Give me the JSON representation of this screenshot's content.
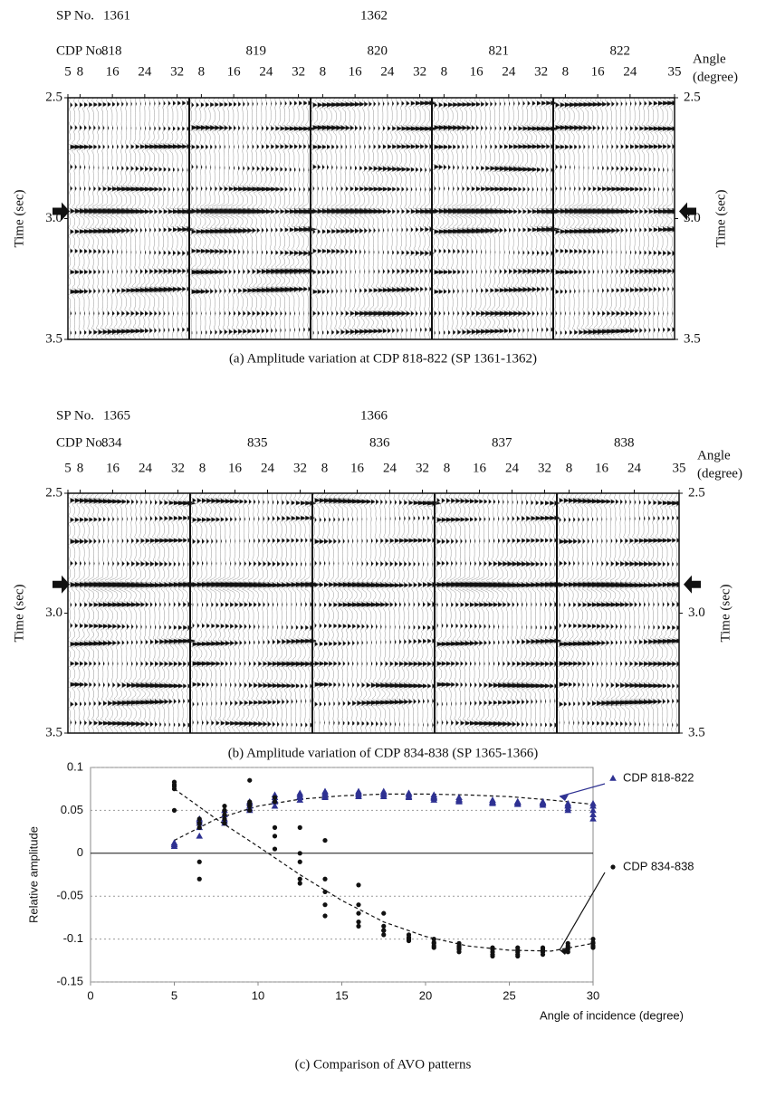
{
  "panels": [
    {
      "sp_label": "SP No.",
      "sp": [
        "1361",
        "1362"
      ],
      "cdp_label": "CDP No.",
      "gathers": [
        {
          "cdp": "818",
          "angles": [
            5,
            8,
            16,
            24,
            32
          ]
        },
        {
          "cdp": "819",
          "angles": [
            8,
            16,
            24,
            32
          ]
        },
        {
          "cdp": "820",
          "angles": [
            8,
            16,
            24,
            32
          ]
        },
        {
          "cdp": "821",
          "angles": [
            8,
            16,
            24,
            32
          ]
        },
        {
          "cdp": "822",
          "angles": [
            8,
            16,
            24,
            35
          ]
        }
      ],
      "angle_label": "Angle",
      "angle_unit": "(degree)",
      "time_label": "Time (sec)",
      "time_ticks": [
        2.5,
        {
          "value": 3,
          "label": "3.0"
        },
        3.5
      ],
      "caption": "(a) Amplitude variation at CDP 818-822 (SP 1361-1362)"
    },
    {
      "sp_label": "SP No.",
      "sp": [
        "1365",
        "1366"
      ],
      "cdp_label": "CDP No.",
      "gathers": [
        {
          "cdp": "834",
          "angles": [
            5,
            8,
            16,
            24,
            32
          ]
        },
        {
          "cdp": "835",
          "angles": [
            8,
            16,
            24,
            32
          ]
        },
        {
          "cdp": "836",
          "angles": [
            8,
            16,
            24,
            32
          ]
        },
        {
          "cdp": "837",
          "angles": [
            8,
            16,
            24,
            32
          ]
        },
        {
          "cdp": "838",
          "angles": [
            8,
            16,
            24,
            35
          ]
        }
      ],
      "angle_label": "Angle",
      "angle_unit": "(degree)",
      "time_label": "Time (sec)",
      "time_ticks": [
        2.5,
        {
          "value": 3,
          "label": "3.0"
        },
        3.5
      ],
      "caption": "(b) Amplitude variation of CDP 834-838 (SP 1365-1366)"
    }
  ],
  "chart_data": {
    "type": "scatter",
    "caption": "(c) Comparison of AVO patterns",
    "x_label": "Angle of incidence (degree)",
    "y_label": "Relative amplitude",
    "xlim": [
      0,
      30
    ],
    "ylim": [
      -0.15,
      0.1
    ],
    "xticks": [
      0,
      5,
      10,
      15,
      20,
      25,
      30
    ],
    "yticks": [
      0.1,
      0.05,
      0,
      -0.05,
      -0.1,
      -0.15
    ],
    "grid": true,
    "legend": "right",
    "x": [
      5,
      5,
      5,
      5,
      5,
      6.5,
      6.5,
      6.5,
      6.5,
      6.5,
      8,
      8,
      8,
      8,
      8,
      9.5,
      9.5,
      9.5,
      9.5,
      9.5,
      11,
      11,
      11,
      11,
      11,
      12.5,
      12.5,
      12.5,
      12.5,
      12.5,
      14,
      14,
      14,
      14,
      14,
      16,
      16,
      16,
      16,
      16,
      17.5,
      17.5,
      17.5,
      17.5,
      17.5,
      19,
      19,
      19,
      19,
      19,
      20.5,
      20.5,
      20.5,
      20.5,
      20.5,
      22,
      22,
      22,
      22,
      22,
      24,
      24,
      24,
      24,
      24,
      25.5,
      25.5,
      25.5,
      25.5,
      25.5,
      27,
      27,
      27,
      27,
      27,
      28.5,
      28.5,
      28.5,
      28.5,
      28.5,
      30,
      30,
      30,
      30,
      30
    ],
    "trend_x": [
      5,
      7.5,
      10,
      12.5,
      15,
      17.5,
      20,
      22.5,
      25,
      27.5,
      30
    ],
    "series": [
      {
        "name": "CDP 818-822",
        "color": "#2e3192",
        "marker": "triangle",
        "values": [
          0.01,
          0.012,
          0.008,
          0.01,
          0.012,
          0.04,
          0.03,
          0.02,
          0.035,
          0.038,
          0.04,
          0.035,
          0.05,
          0.045,
          0.038,
          0.055,
          0.05,
          0.06,
          0.058,
          0.052,
          0.06,
          0.065,
          0.055,
          0.068,
          0.062,
          0.065,
          0.068,
          0.062,
          0.07,
          0.066,
          0.068,
          0.065,
          0.07,
          0.072,
          0.066,
          0.07,
          0.068,
          0.072,
          0.066,
          0.07,
          0.07,
          0.068,
          0.066,
          0.072,
          0.07,
          0.068,
          0.07,
          0.066,
          0.065,
          0.07,
          0.066,
          0.062,
          0.068,
          0.064,
          0.065,
          0.062,
          0.06,
          0.065,
          0.063,
          0.061,
          0.06,
          0.058,
          0.062,
          0.06,
          0.059,
          0.058,
          0.06,
          0.057,
          0.06,
          0.059,
          0.058,
          0.06,
          0.056,
          0.059,
          0.058,
          0.055,
          0.05,
          0.058,
          0.052,
          0.056,
          0.055,
          0.045,
          0.04,
          0.05,
          0.058
        ],
        "trend": [
          0.015,
          0.04,
          0.055,
          0.063,
          0.067,
          0.069,
          0.069,
          0.068,
          0.066,
          0.062,
          0.057
        ]
      },
      {
        "name": "CDP 834-838",
        "color": "#111111",
        "marker": "circle",
        "values": [
          0.083,
          0.078,
          0.05,
          0.075,
          0.08,
          -0.03,
          -0.01,
          0.03,
          0.04,
          0.035,
          0.055,
          0.045,
          0.04,
          0.035,
          0.05,
          0.085,
          0.06,
          0.055,
          0.05,
          0.058,
          0.06,
          0.03,
          0.02,
          0.005,
          0.065,
          0.03,
          0,
          -0.01,
          -0.035,
          -0.03,
          0.015,
          -0.03,
          -0.045,
          -0.06,
          -0.073,
          -0.037,
          -0.06,
          -0.07,
          -0.08,
          -0.085,
          -0.07,
          -0.085,
          -0.09,
          -0.095,
          -0.09,
          -0.095,
          -0.1,
          -0.102,
          -0.098,
          -0.1,
          -0.1,
          -0.105,
          -0.11,
          -0.108,
          -0.104,
          -0.105,
          -0.11,
          -0.115,
          -0.108,
          -0.112,
          -0.11,
          -0.115,
          -0.12,
          -0.112,
          -0.118,
          -0.11,
          -0.115,
          -0.12,
          -0.118,
          -0.113,
          -0.11,
          -0.115,
          -0.118,
          -0.112,
          -0.114,
          -0.105,
          -0.11,
          -0.115,
          -0.112,
          -0.108,
          -0.1,
          -0.105,
          -0.11,
          -0.108,
          -0.104
        ],
        "trend": [
          0.075,
          0.04,
          0.008,
          -0.025,
          -0.055,
          -0.08,
          -0.097,
          -0.108,
          -0.113,
          -0.114,
          -0.105
        ]
      }
    ]
  }
}
